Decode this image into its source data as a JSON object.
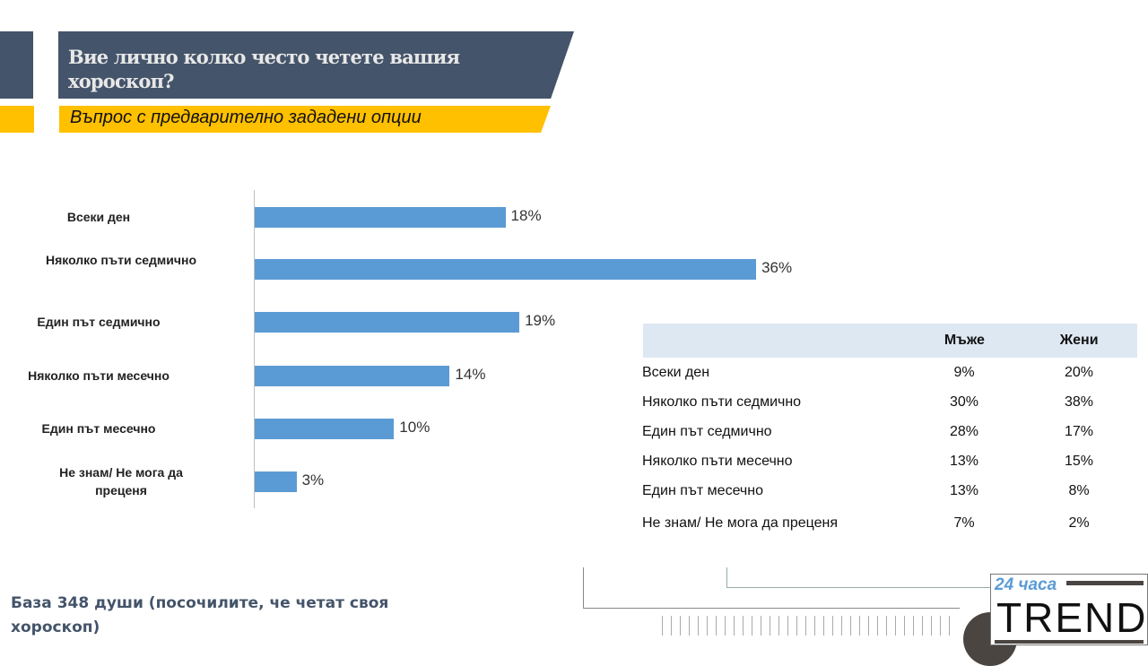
{
  "header": {
    "title": "Вие лично колко често четете вашия хороскоп?",
    "subtitle": "Въпрос с предварително зададени опции"
  },
  "chart_data": {
    "type": "bar",
    "orientation": "horizontal",
    "categories": [
      "Всеки ден",
      "Няколко пъти седмично",
      "Един път седмично",
      "Няколко пъти месечно",
      "Един път месечно",
      "Не знам/ Не мога да преценя"
    ],
    "values": [
      18,
      36,
      19,
      14,
      10,
      3
    ],
    "labels": [
      "18%",
      "36%",
      "19%",
      "14%",
      "10%",
      "3%"
    ],
    "unit": "%",
    "xlim": [
      0,
      40
    ],
    "color": "#5b9bd5"
  },
  "table": {
    "headers": [
      "",
      "Мъже",
      "Жени"
    ],
    "rows": [
      [
        "Всеки ден",
        "9%",
        "20%"
      ],
      [
        "Няколко пъти седмично",
        "30%",
        "38%"
      ],
      [
        "Един път седмично",
        "28%",
        "17%"
      ],
      [
        "Няколко пъти месечно",
        "13%",
        "15%"
      ],
      [
        "Един път месечно",
        "13%",
        "8%"
      ],
      [
        "Не знам/ Не мога да преценя",
        "7%",
        "2%"
      ]
    ]
  },
  "footer": {
    "base": "База 348 души (посочилите, че четат своя хороскоп)"
  },
  "logo": {
    "top": "24 часа",
    "bottom": "TREND"
  }
}
